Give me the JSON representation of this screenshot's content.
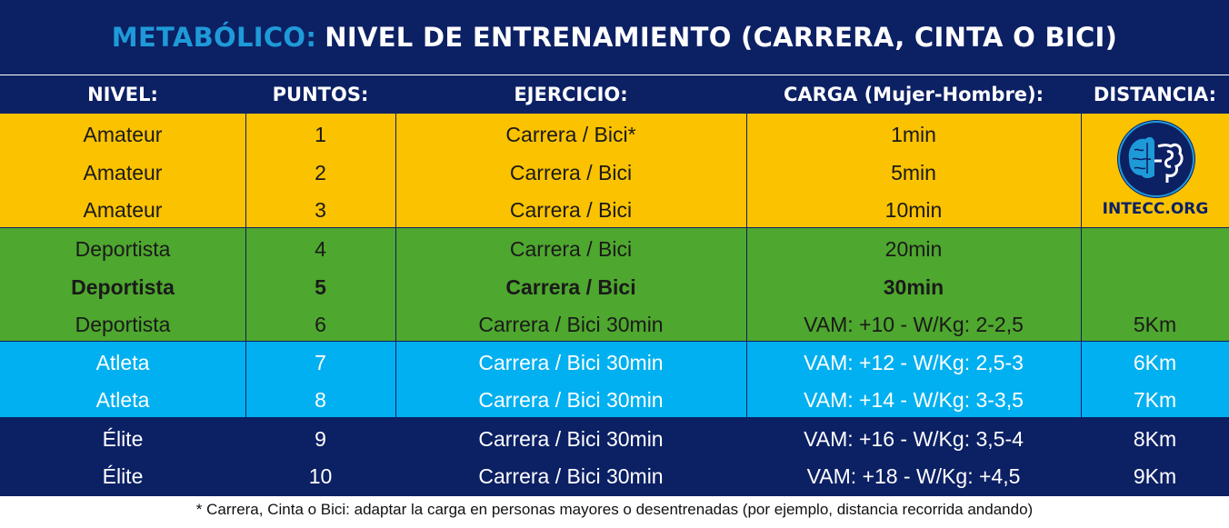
{
  "title": {
    "highlight": "METABÓLICO:",
    "rest": "NIVEL DE ENTRENAMIENTO (CARRERA, CINTA O BICI)"
  },
  "colors": {
    "navy": "#0c2064",
    "amber": "#fbc200",
    "green": "#4ea72e",
    "sky": "#00b0f0",
    "accent": "#1f9ad8"
  },
  "headers": {
    "nivel": "NIVEL:",
    "puntos": "PUNTOS:",
    "ejercicio": "EJERCICIO:",
    "carga": "CARGA (Mujer-Hombre):",
    "distancia": "DISTANCIA:"
  },
  "rows": [
    {
      "nivel": "Amateur",
      "puntos": "1",
      "ejercicio": "Carrera / Bici*",
      "carga": "1min",
      "distancia": ""
    },
    {
      "nivel": "Amateur",
      "puntos": "2",
      "ejercicio": "Carrera / Bici",
      "carga": "5min",
      "distancia": ""
    },
    {
      "nivel": "Amateur",
      "puntos": "3",
      "ejercicio": "Carrera / Bici",
      "carga": "10min",
      "distancia": ""
    },
    {
      "nivel": "Deportista",
      "puntos": "4",
      "ejercicio": "Carrera / Bici",
      "carga": "20min",
      "distancia": ""
    },
    {
      "nivel": "Deportista",
      "puntos": "5",
      "ejercicio": "Carrera / Bici",
      "carga": "30min",
      "distancia": "",
      "bold": true
    },
    {
      "nivel": "Deportista",
      "puntos": "6",
      "ejercicio": "Carrera / Bici 30min",
      "carga": "VAM: +10 - W/Kg: 2-2,5",
      "distancia": "5Km"
    },
    {
      "nivel": "Atleta",
      "puntos": "7",
      "ejercicio": "Carrera / Bici 30min",
      "carga": "VAM: +12 - W/Kg: 2,5-3",
      "distancia": "6Km"
    },
    {
      "nivel": "Atleta",
      "puntos": "8",
      "ejercicio": "Carrera / Bici 30min",
      "carga": "VAM: +14 - W/Kg: 3-3,5",
      "distancia": "7Km"
    },
    {
      "nivel": "Élite",
      "puntos": "9",
      "ejercicio": "Carrera / Bici 30min",
      "carga": "VAM: +16 - W/Kg: 3,5-4",
      "distancia": "8Km"
    },
    {
      "nivel": "Élite",
      "puntos": "10",
      "ejercicio": "Carrera / Bici 30min",
      "carga": "VAM: +18 - W/Kg: +4,5",
      "distancia": "9Km"
    }
  ],
  "logo": {
    "icon": "brain-head-logo",
    "text": "INTECC.ORG"
  },
  "footnote": "* Carrera, Cinta o Bici: adaptar la carga en personas mayores o desentrenadas (por ejemplo, distancia recorrida andando)"
}
